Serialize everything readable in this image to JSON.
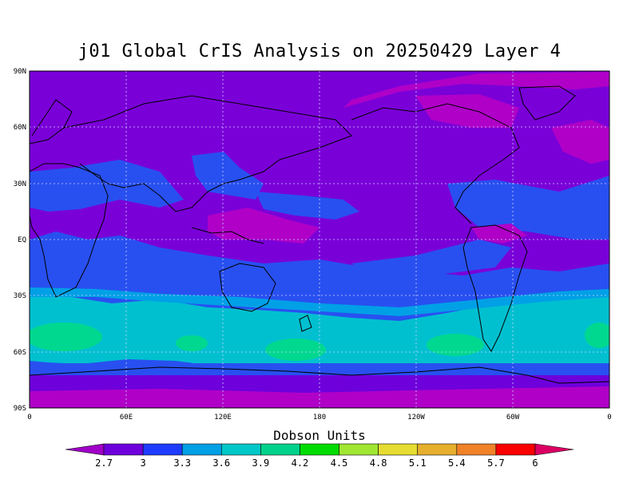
{
  "title": "j01 Global CrIS Analysis on 20250429 Layer 4",
  "lat_ticks": [
    "90N",
    "60N",
    "30N",
    "EQ",
    "30S",
    "60S",
    "90S"
  ],
  "lon_ticks": [
    "0",
    "60E",
    "120E",
    "180",
    "120W",
    "60W",
    "0"
  ],
  "legend": {
    "title": "Dobson Units",
    "values": [
      "2.7",
      "3",
      "3.3",
      "3.6",
      "3.9",
      "4.2",
      "4.5",
      "4.8",
      "5.1",
      "5.4",
      "5.7",
      "6"
    ],
    "colors": [
      "#a000c8",
      "#6e00dc",
      "#1e3cff",
      "#00a0e6",
      "#00c8c8",
      "#00d28c",
      "#00dc00",
      "#a0e632",
      "#e6dc32",
      "#e6af2d",
      "#f08228",
      "#fa0000",
      "#dc0064"
    ]
  },
  "colors": {
    "background_purple": "#7a00d8",
    "magenta": "#b000c8",
    "blue": "#2850f0",
    "cyan": "#00c0d0",
    "green": "#00d890",
    "coast": "#000000",
    "grid": "#d0d0ff"
  }
}
